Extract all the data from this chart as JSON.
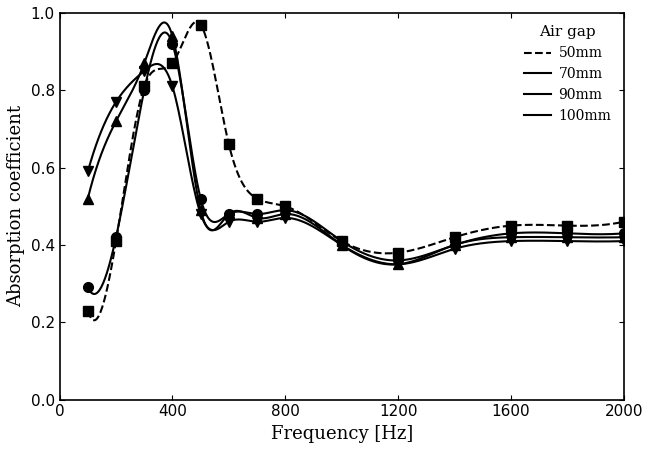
{
  "title": "",
  "xlabel": "Frequency [Hz]",
  "ylabel": "Absorption coefficient",
  "xlim": [
    0,
    2000
  ],
  "ylim": [
    0.0,
    1.0
  ],
  "xticks": [
    0,
    400,
    800,
    1200,
    1600,
    2000
  ],
  "yticks": [
    0.0,
    0.2,
    0.4,
    0.6,
    0.8,
    1.0
  ],
  "legend_title": "Air gap",
  "series": [
    {
      "label": "50mm",
      "marker": "s",
      "linestyle": "--",
      "color": "black",
      "x": [
        100,
        200,
        300,
        400,
        500,
        600,
        700,
        800,
        1000,
        1200,
        1400,
        1600,
        1800,
        2000
      ],
      "y": [
        0.23,
        0.41,
        0.81,
        0.87,
        0.97,
        0.66,
        0.52,
        0.5,
        0.41,
        0.38,
        0.42,
        0.45,
        0.45,
        0.46
      ]
    },
    {
      "label": "70mm",
      "marker": "o",
      "linestyle": "-",
      "color": "black",
      "x": [
        100,
        200,
        300,
        400,
        500,
        600,
        700,
        800,
        1000,
        1200,
        1400,
        1600,
        1800,
        2000
      ],
      "y": [
        0.29,
        0.42,
        0.8,
        0.92,
        0.52,
        0.48,
        0.48,
        0.49,
        0.41,
        0.36,
        0.4,
        0.43,
        0.43,
        0.43
      ]
    },
    {
      "label": "90mm",
      "marker": "^",
      "linestyle": "-",
      "color": "black",
      "x": [
        100,
        200,
        300,
        400,
        500,
        600,
        700,
        800,
        1000,
        1200,
        1400,
        1600,
        1800,
        2000
      ],
      "y": [
        0.52,
        0.72,
        0.87,
        0.94,
        0.49,
        0.48,
        0.47,
        0.48,
        0.4,
        0.35,
        0.4,
        0.42,
        0.42,
        0.42
      ]
    },
    {
      "label": "100mm",
      "marker": "v",
      "linestyle": "-",
      "color": "black",
      "x": [
        100,
        200,
        300,
        400,
        500,
        600,
        700,
        800,
        1000,
        1200,
        1400,
        1600,
        1800,
        2000
      ],
      "y": [
        0.59,
        0.77,
        0.85,
        0.81,
        0.48,
        0.46,
        0.46,
        0.47,
        0.4,
        0.35,
        0.39,
        0.41,
        0.41,
        0.41
      ]
    }
  ],
  "background_color": "#ffffff",
  "font_color": "black",
  "linewidth": 1.5,
  "markersize": 7
}
